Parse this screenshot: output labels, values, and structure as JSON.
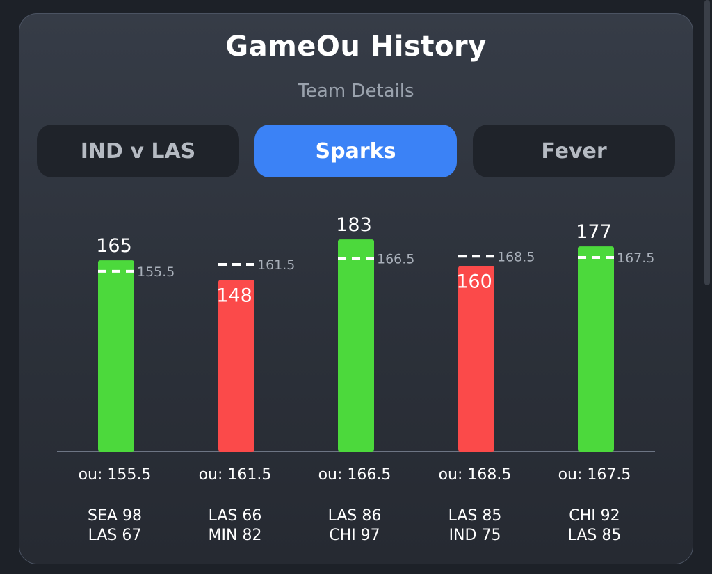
{
  "header": {
    "title": "GameOu History",
    "subtitle": "Team Details"
  },
  "tabs": [
    {
      "label": "IND v LAS",
      "active": false
    },
    {
      "label": "Sparks",
      "active": true
    },
    {
      "label": "Fever",
      "active": false
    }
  ],
  "colors": {
    "over": "#4cd93c",
    "under": "#fb4a4a",
    "accent": "#3b82f6"
  },
  "chart_data": {
    "type": "bar",
    "ylim": [
      0,
      200
    ],
    "games": [
      {
        "total": 165,
        "line": 155.5,
        "line_label": "155.5",
        "ou_label": "ou: 155.5",
        "team1": "SEA 98",
        "team2": "LAS 67",
        "result": "over"
      },
      {
        "total": 148,
        "line": 161.5,
        "line_label": "161.5",
        "ou_label": "ou: 161.5",
        "team1": "LAS 66",
        "team2": "MIN 82",
        "result": "under"
      },
      {
        "total": 183,
        "line": 166.5,
        "line_label": "166.5",
        "ou_label": "ou: 166.5",
        "team1": "LAS 86",
        "team2": "CHI 97",
        "result": "over"
      },
      {
        "total": 160,
        "line": 168.5,
        "line_label": "168.5",
        "ou_label": "ou: 168.5",
        "team1": "LAS 85",
        "team2": "IND 75",
        "result": "under"
      },
      {
        "total": 177,
        "line": 167.5,
        "line_label": "167.5",
        "ou_label": "ou: 167.5",
        "team1": "CHI 92",
        "team2": "LAS 85",
        "result": "over"
      }
    ]
  }
}
